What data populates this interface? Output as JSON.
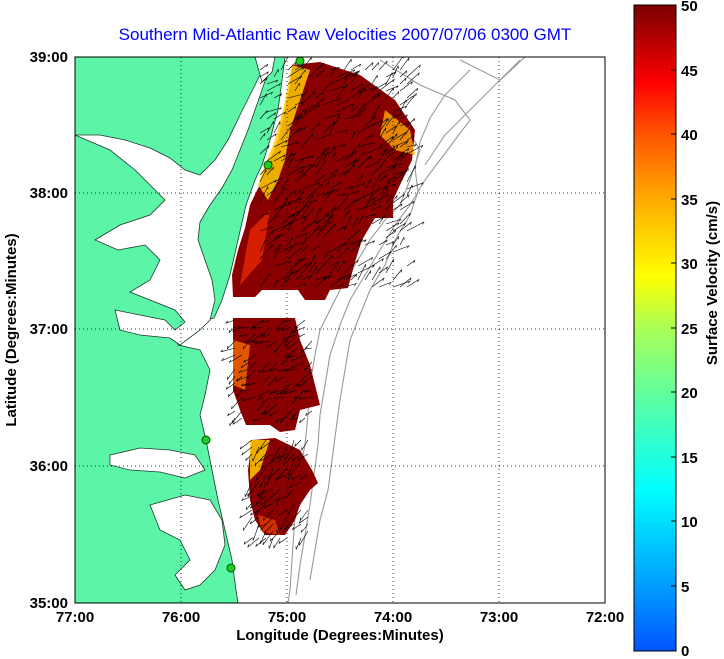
{
  "title": "Southern Mid-Atlantic Raw Velocities 2007/07/06 0300 GMT",
  "x_axis": {
    "label": "Longitude (Degrees:Minutes)",
    "ticks": [
      "77:00",
      "76:00",
      "75:00",
      "74:00",
      "73:00",
      "72:00"
    ]
  },
  "y_axis": {
    "label": "Latitude (Degrees:Minutes)",
    "ticks": [
      "39:00",
      "38:00",
      "37:00",
      "36:00",
      "35:00"
    ]
  },
  "colorbar": {
    "label": "Surface Velocity (cm/s)",
    "ticks": [
      "50",
      "45",
      "40",
      "35",
      "30",
      "25",
      "20",
      "15",
      "10",
      "5",
      "0"
    ],
    "min": 0,
    "max": 50,
    "colormap": "jet"
  },
  "map": {
    "lon_range": [
      -77,
      -72
    ],
    "lat_range": [
      35,
      39
    ],
    "land_color": "#5cf5a8",
    "grid": "dotted",
    "stations": [
      {
        "lon": -74.9,
        "lat": 38.97
      },
      {
        "lon": -75.1,
        "lat": 38.2
      },
      {
        "lon": -75.7,
        "lat": 36.2
      },
      {
        "lon": -75.5,
        "lat": 35.25
      }
    ]
  }
}
